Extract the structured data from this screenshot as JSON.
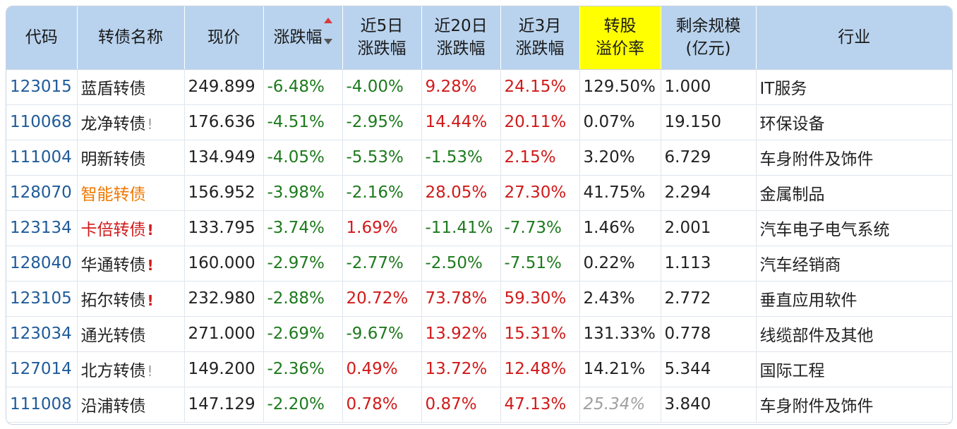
{
  "headers": {
    "code": "代码",
    "name": "转债名称",
    "price": "现价",
    "change": "涨跌幅",
    "d5_line1": "近5日",
    "d5_line2": "涨跌幅",
    "d20_line1": "近20日",
    "d20_line2": "涨跌幅",
    "m3_line1": "近3月",
    "m3_line2": "涨跌幅",
    "premium_line1": "转股",
    "premium_line2": "溢价率",
    "scale_line1": "剩余规模",
    "scale_line2": "(亿元)",
    "industry": "行业"
  },
  "colors": {
    "header_bg": "#b9d3ee",
    "premium_header_bg": "#ffff00",
    "up": "#d11a1a",
    "down": "#1d7a1d",
    "code": "#1f5b99"
  },
  "rows": [
    {
      "code": "123015",
      "name": "蓝盾转债",
      "flag": "",
      "price": "249.899",
      "change": "-6.48%",
      "d5": "-4.00%",
      "d20": "9.28%",
      "m3": "24.15%",
      "premium": "129.50%",
      "scale": "1.000",
      "industry": "IT服务"
    },
    {
      "code": "110068",
      "name": "龙净转债",
      "flag": "!",
      "price": "176.636",
      "change": "-4.51%",
      "d5": "-2.95%",
      "d20": "14.44%",
      "m3": "20.11%",
      "premium": "0.07%",
      "scale": "19.150",
      "industry": "环保设备"
    },
    {
      "code": "111004",
      "name": "明新转债",
      "flag": "",
      "price": "134.949",
      "change": "-4.05%",
      "d5": "-5.53%",
      "d20": "-1.53%",
      "m3": "2.15%",
      "premium": "3.20%",
      "scale": "6.729",
      "industry": "车身附件及饰件"
    },
    {
      "code": "128070",
      "name": "智能转债",
      "flag": "",
      "price": "156.952",
      "change": "-3.98%",
      "d5": "-2.16%",
      "d20": "28.05%",
      "m3": "27.30%",
      "premium": "41.75%",
      "scale": "2.294",
      "industry": "金属制品"
    },
    {
      "code": "123134",
      "name": "卡倍转债",
      "flag": "!",
      "price": "133.795",
      "change": "-3.74%",
      "d5": "1.69%",
      "d20": "-11.41%",
      "m3": "-7.73%",
      "premium": "1.46%",
      "scale": "2.001",
      "industry": "汽车电子电气系统"
    },
    {
      "code": "128040",
      "name": "华通转债",
      "flag": "!",
      "price": "160.000",
      "change": "-2.97%",
      "d5": "-2.77%",
      "d20": "-2.50%",
      "m3": "-7.51%",
      "premium": "0.22%",
      "scale": "1.113",
      "industry": "汽车经销商"
    },
    {
      "code": "123105",
      "name": "拓尔转债",
      "flag": "!",
      "price": "232.980",
      "change": "-2.88%",
      "d5": "20.72%",
      "d20": "73.78%",
      "m3": "59.30%",
      "premium": "2.43%",
      "scale": "2.772",
      "industry": "垂直应用软件"
    },
    {
      "code": "123034",
      "name": "通光转债",
      "flag": "",
      "price": "271.000",
      "change": "-2.69%",
      "d5": "-9.67%",
      "d20": "13.92%",
      "m3": "15.31%",
      "premium": "131.33%",
      "scale": "0.778",
      "industry": "线缆部件及其他"
    },
    {
      "code": "127014",
      "name": "北方转债",
      "flag": "!",
      "price": "149.200",
      "change": "-2.36%",
      "d5": "0.49%",
      "d20": "13.72%",
      "m3": "12.48%",
      "premium": "14.21%",
      "scale": "5.344",
      "industry": "国际工程"
    },
    {
      "code": "111008",
      "name": "沿浦转债",
      "flag": "",
      "price": "147.129",
      "change": "-2.20%",
      "d5": "0.78%",
      "d20": "0.87%",
      "m3": "47.13%",
      "premium": "25.34%",
      "scale": "3.840",
      "industry": "车身附件及饰件"
    }
  ]
}
